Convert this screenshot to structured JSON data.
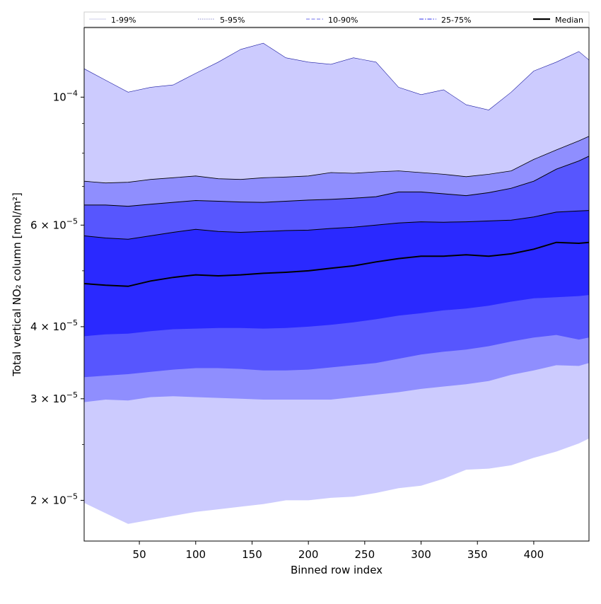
{
  "chart_data": {
    "type": "area",
    "xlabel": "Binned row index",
    "ylabel": "Total vertical NO₂ column [mol/m²]",
    "y_scale": "log",
    "xlim": [
      1,
      449
    ],
    "ylim": [
      1.7e-05,
      0.000132
    ],
    "x_ticks": [
      50,
      100,
      150,
      200,
      250,
      300,
      350,
      400
    ],
    "y_ticks": [
      {
        "value": 2e-05,
        "mantissa": "2",
        "exponent": "−5"
      },
      {
        "value": 3e-05,
        "mantissa": "3",
        "exponent": "−5"
      },
      {
        "value": 4e-05,
        "mantissa": "4",
        "exponent": "−5"
      },
      {
        "value": 6e-05,
        "mantissa": "6",
        "exponent": "−5"
      },
      {
        "value": 0.0001,
        "mantissa": "",
        "exponent": "−4"
      }
    ],
    "x": [
      1,
      20,
      40,
      60,
      80,
      100,
      120,
      140,
      160,
      180,
      200,
      220,
      240,
      260,
      280,
      300,
      320,
      340,
      360,
      380,
      400,
      420,
      440,
      449
    ],
    "median": [
      4.75e-05,
      4.72e-05,
      4.7e-05,
      4.8e-05,
      4.87e-05,
      4.92e-05,
      4.9e-05,
      4.92e-05,
      4.95e-05,
      4.97e-05,
      5e-05,
      5.05e-05,
      5.1e-05,
      5.18e-05,
      5.25e-05,
      5.3e-05,
      5.3e-05,
      5.33e-05,
      5.3e-05,
      5.35e-05,
      5.45e-05,
      5.6e-05,
      5.58e-05,
      5.6e-05
    ],
    "bands": [
      {
        "name": "1-99%",
        "color": "#cccbfe",
        "upper": [
          0.000112,
          0.000107,
          0.000102,
          0.000104,
          0.000105,
          0.00011,
          0.000115,
          0.000121,
          0.000124,
          0.000117,
          0.000115,
          0.000114,
          0.000117,
          0.000115,
          0.000104,
          0.000101,
          0.000103,
          9.7e-05,
          9.5e-05,
          0.000102,
          0.000111,
          0.000115,
          0.00012,
          0.000116
        ],
        "lower": [
          1.98e-05,
          1.9e-05,
          1.82e-05,
          1.85e-05,
          1.88e-05,
          1.91e-05,
          1.93e-05,
          1.95e-05,
          1.97e-05,
          2e-05,
          2e-05,
          2.02e-05,
          2.03e-05,
          2.06e-05,
          2.1e-05,
          2.12e-05,
          2.18e-05,
          2.26e-05,
          2.27e-05,
          2.3e-05,
          2.37e-05,
          2.43e-05,
          2.51e-05,
          2.56e-05
        ]
      },
      {
        "name": "5-95%",
        "color": "#8f8efe",
        "upper": [
          7.15e-05,
          7.1e-05,
          7.12e-05,
          7.2e-05,
          7.25e-05,
          7.3e-05,
          7.22e-05,
          7.2e-05,
          7.25e-05,
          7.27e-05,
          7.3e-05,
          7.4e-05,
          7.38e-05,
          7.42e-05,
          7.45e-05,
          7.4e-05,
          7.35e-05,
          7.28e-05,
          7.35e-05,
          7.45e-05,
          7.8e-05,
          8.1e-05,
          8.4e-05,
          8.55e-05
        ],
        "lower": [
          2.96e-05,
          2.99e-05,
          2.98e-05,
          3.02e-05,
          3.03e-05,
          3.02e-05,
          3.01e-05,
          3e-05,
          2.99e-05,
          2.99e-05,
          2.99e-05,
          2.99e-05,
          3.02e-05,
          3.05e-05,
          3.08e-05,
          3.12e-05,
          3.15e-05,
          3.18e-05,
          3.22e-05,
          3.3e-05,
          3.36e-05,
          3.43e-05,
          3.42e-05,
          3.46e-05
        ]
      },
      {
        "name": "10-90%",
        "color": "#5756fe",
        "upper": [
          6.5e-05,
          6.5e-05,
          6.47e-05,
          6.52e-05,
          6.57e-05,
          6.62e-05,
          6.6e-05,
          6.58e-05,
          6.57e-05,
          6.6e-05,
          6.63e-05,
          6.65e-05,
          6.68e-05,
          6.72e-05,
          6.85e-05,
          6.85e-05,
          6.8e-05,
          6.75e-05,
          6.83e-05,
          6.95e-05,
          7.15e-05,
          7.5e-05,
          7.75e-05,
          7.9e-05
        ],
        "lower": [
          3.27e-05,
          3.29e-05,
          3.31e-05,
          3.34e-05,
          3.37e-05,
          3.39e-05,
          3.39e-05,
          3.38e-05,
          3.36e-05,
          3.36e-05,
          3.37e-05,
          3.4e-05,
          3.43e-05,
          3.46e-05,
          3.52e-05,
          3.58e-05,
          3.62e-05,
          3.65e-05,
          3.7e-05,
          3.77e-05,
          3.83e-05,
          3.87e-05,
          3.8e-05,
          3.83e-05
        ]
      },
      {
        "name": "25-75%",
        "color": "#2a29ff",
        "upper": [
          5.75e-05,
          5.7e-05,
          5.67e-05,
          5.75e-05,
          5.83e-05,
          5.9e-05,
          5.85e-05,
          5.83e-05,
          5.85e-05,
          5.87e-05,
          5.88e-05,
          5.92e-05,
          5.95e-05,
          6e-05,
          6.05e-05,
          6.08e-05,
          6.07e-05,
          6.08e-05,
          6.1e-05,
          6.12e-05,
          6.2e-05,
          6.32e-05,
          6.35e-05,
          6.36e-05
        ],
        "lower": [
          3.85e-05,
          3.88e-05,
          3.89e-05,
          3.93e-05,
          3.96e-05,
          3.97e-05,
          3.98e-05,
          3.98e-05,
          3.97e-05,
          3.98e-05,
          4e-05,
          4.03e-05,
          4.07e-05,
          4.12e-05,
          4.18e-05,
          4.22e-05,
          4.27e-05,
          4.3e-05,
          4.35e-05,
          4.42e-05,
          4.48e-05,
          4.5e-05,
          4.52e-05,
          4.54e-05
        ]
      }
    ],
    "legend": {
      "placement": "top",
      "entries": [
        {
          "label": "1-99%",
          "color": "#d8d8ee",
          "dash": "solid"
        },
        {
          "label": "5-95%",
          "color": "#a3a3d6",
          "dash": "dotted"
        },
        {
          "label": "10-90%",
          "color": "#8a8aee",
          "dash": "dashed"
        },
        {
          "label": "25-75%",
          "color": "#5a5aee",
          "dash": "dashdot"
        },
        {
          "label": "Median",
          "color": "#000000",
          "dash": "solid"
        }
      ]
    }
  }
}
